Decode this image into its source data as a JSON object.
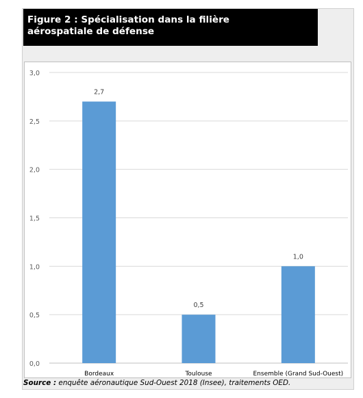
{
  "figure": {
    "title_line1": "Figure 2 : Spécialisation dans la filière",
    "title_line2": "aérospatiale de défense"
  },
  "source": {
    "label": "Source :",
    "text": " enquête aéronautique Sud-Ouest 2018 (Insee), traitements OED."
  },
  "chart_data": {
    "type": "bar",
    "categories": [
      "Bordeaux",
      "Toulouse",
      "Ensemble (Grand Sud-Ouest)"
    ],
    "values": [
      2.7,
      0.5,
      1.0
    ],
    "value_labels": [
      "2,7",
      "0,5",
      "1,0"
    ],
    "yticks": [
      0,
      0.5,
      1.0,
      1.5,
      2.0,
      2.5,
      3.0
    ],
    "ytick_labels": [
      "0,0",
      "0,5",
      "1,0",
      "1,5",
      "2,0",
      "2,5",
      "3,0"
    ],
    "ylim": [
      0,
      3.0
    ],
    "bar_color": "#5b9bd5",
    "grid": true,
    "title": "",
    "xlabel": "",
    "ylabel": ""
  }
}
